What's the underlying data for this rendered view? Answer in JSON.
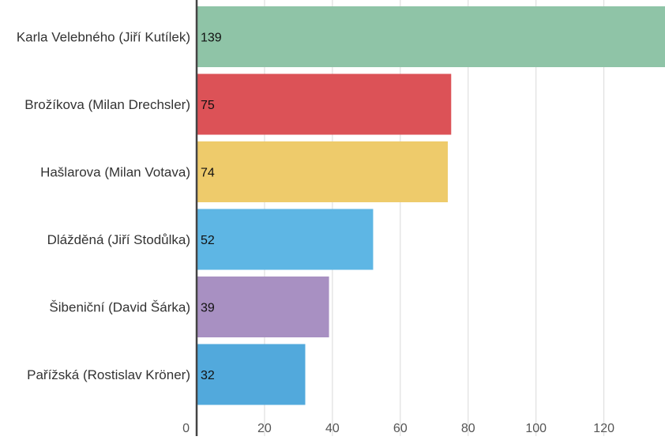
{
  "chart_data": {
    "type": "bar",
    "orientation": "horizontal",
    "categories": [
      "Karla Velebného (Jiří Kutílek)",
      "Brožíkova (Milan Drechsler)",
      "Hašlarova (Milan Votava)",
      "Dlážděná (Jiří Stodůlka)",
      "Šibeniční (David Šárka)",
      "Pařížská (Rostislav Kröner)"
    ],
    "values": [
      139,
      75,
      74,
      52,
      39,
      32
    ],
    "colors": [
      "#8fc4a7",
      "#dc5257",
      "#eecb6b",
      "#5eb6e4",
      "#a890c2",
      "#52a9dc"
    ],
    "x_ticks": [
      0,
      20,
      40,
      60,
      80,
      100,
      120
    ],
    "xlim": [
      0,
      138
    ],
    "grid": true,
    "title": "",
    "xlabel": "",
    "ylabel": ""
  }
}
